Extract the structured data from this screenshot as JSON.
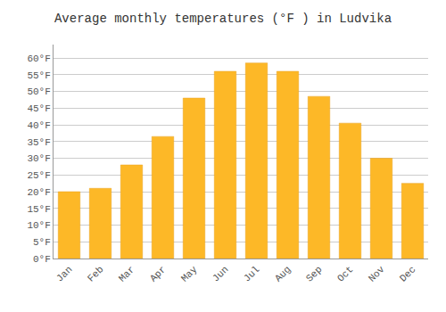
{
  "chart_data": {
    "type": "bar",
    "title": "Average monthly temperatures (°F ) in Ludvika",
    "categories": [
      "Jan",
      "Feb",
      "Mar",
      "Apr",
      "May",
      "Jun",
      "Jul",
      "Aug",
      "Sep",
      "Oct",
      "Nov",
      "Dec"
    ],
    "values": [
      20.0,
      21.0,
      28.0,
      36.5,
      48.0,
      56.0,
      58.5,
      56.0,
      48.5,
      40.5,
      30.0,
      22.5
    ],
    "color": "#FDB827",
    "ylim": [
      0,
      64
    ],
    "yticks": [
      {
        "value": 0,
        "label": "0°F"
      },
      {
        "value": 5,
        "label": "5°F"
      },
      {
        "value": 10,
        "label": "10°F"
      },
      {
        "value": 15,
        "label": "15°F"
      },
      {
        "value": 20,
        "label": "20°F"
      },
      {
        "value": 25,
        "label": "25°F"
      },
      {
        "value": 30,
        "label": "30°F"
      },
      {
        "value": 35,
        "label": "35°F"
      },
      {
        "value": 40,
        "label": "40°F"
      },
      {
        "value": 45,
        "label": "45°F"
      },
      {
        "value": 50,
        "label": "50°F"
      },
      {
        "value": 55,
        "label": "55°F"
      },
      {
        "value": 60,
        "label": "60°F"
      }
    ],
    "grid": true
  }
}
